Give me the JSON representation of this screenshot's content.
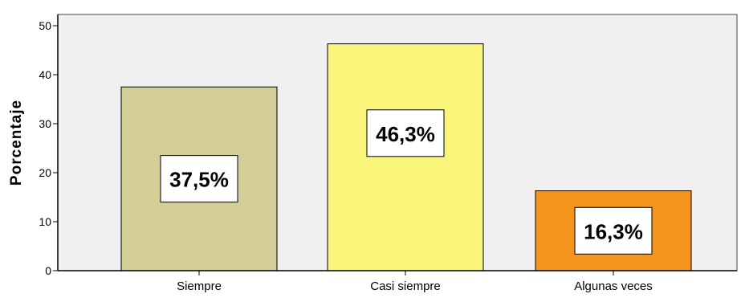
{
  "chart_data": {
    "type": "bar",
    "ylabel": "Porcentaje",
    "xlabel": "",
    "ylim": [
      0,
      50
    ],
    "yticks": [
      0,
      10,
      20,
      30,
      40,
      50
    ],
    "grid": false,
    "categories": [
      "Siempre",
      "Casi siempre",
      "Algunas veces"
    ],
    "values": [
      37.5,
      46.3,
      16.3
    ],
    "data_labels": [
      "37,5%",
      "46,3%",
      "16,3%"
    ],
    "colors": [
      "#d3cd98",
      "#f8f57a",
      "#f5951e"
    ],
    "plot_background": "#f0f0f0"
  }
}
